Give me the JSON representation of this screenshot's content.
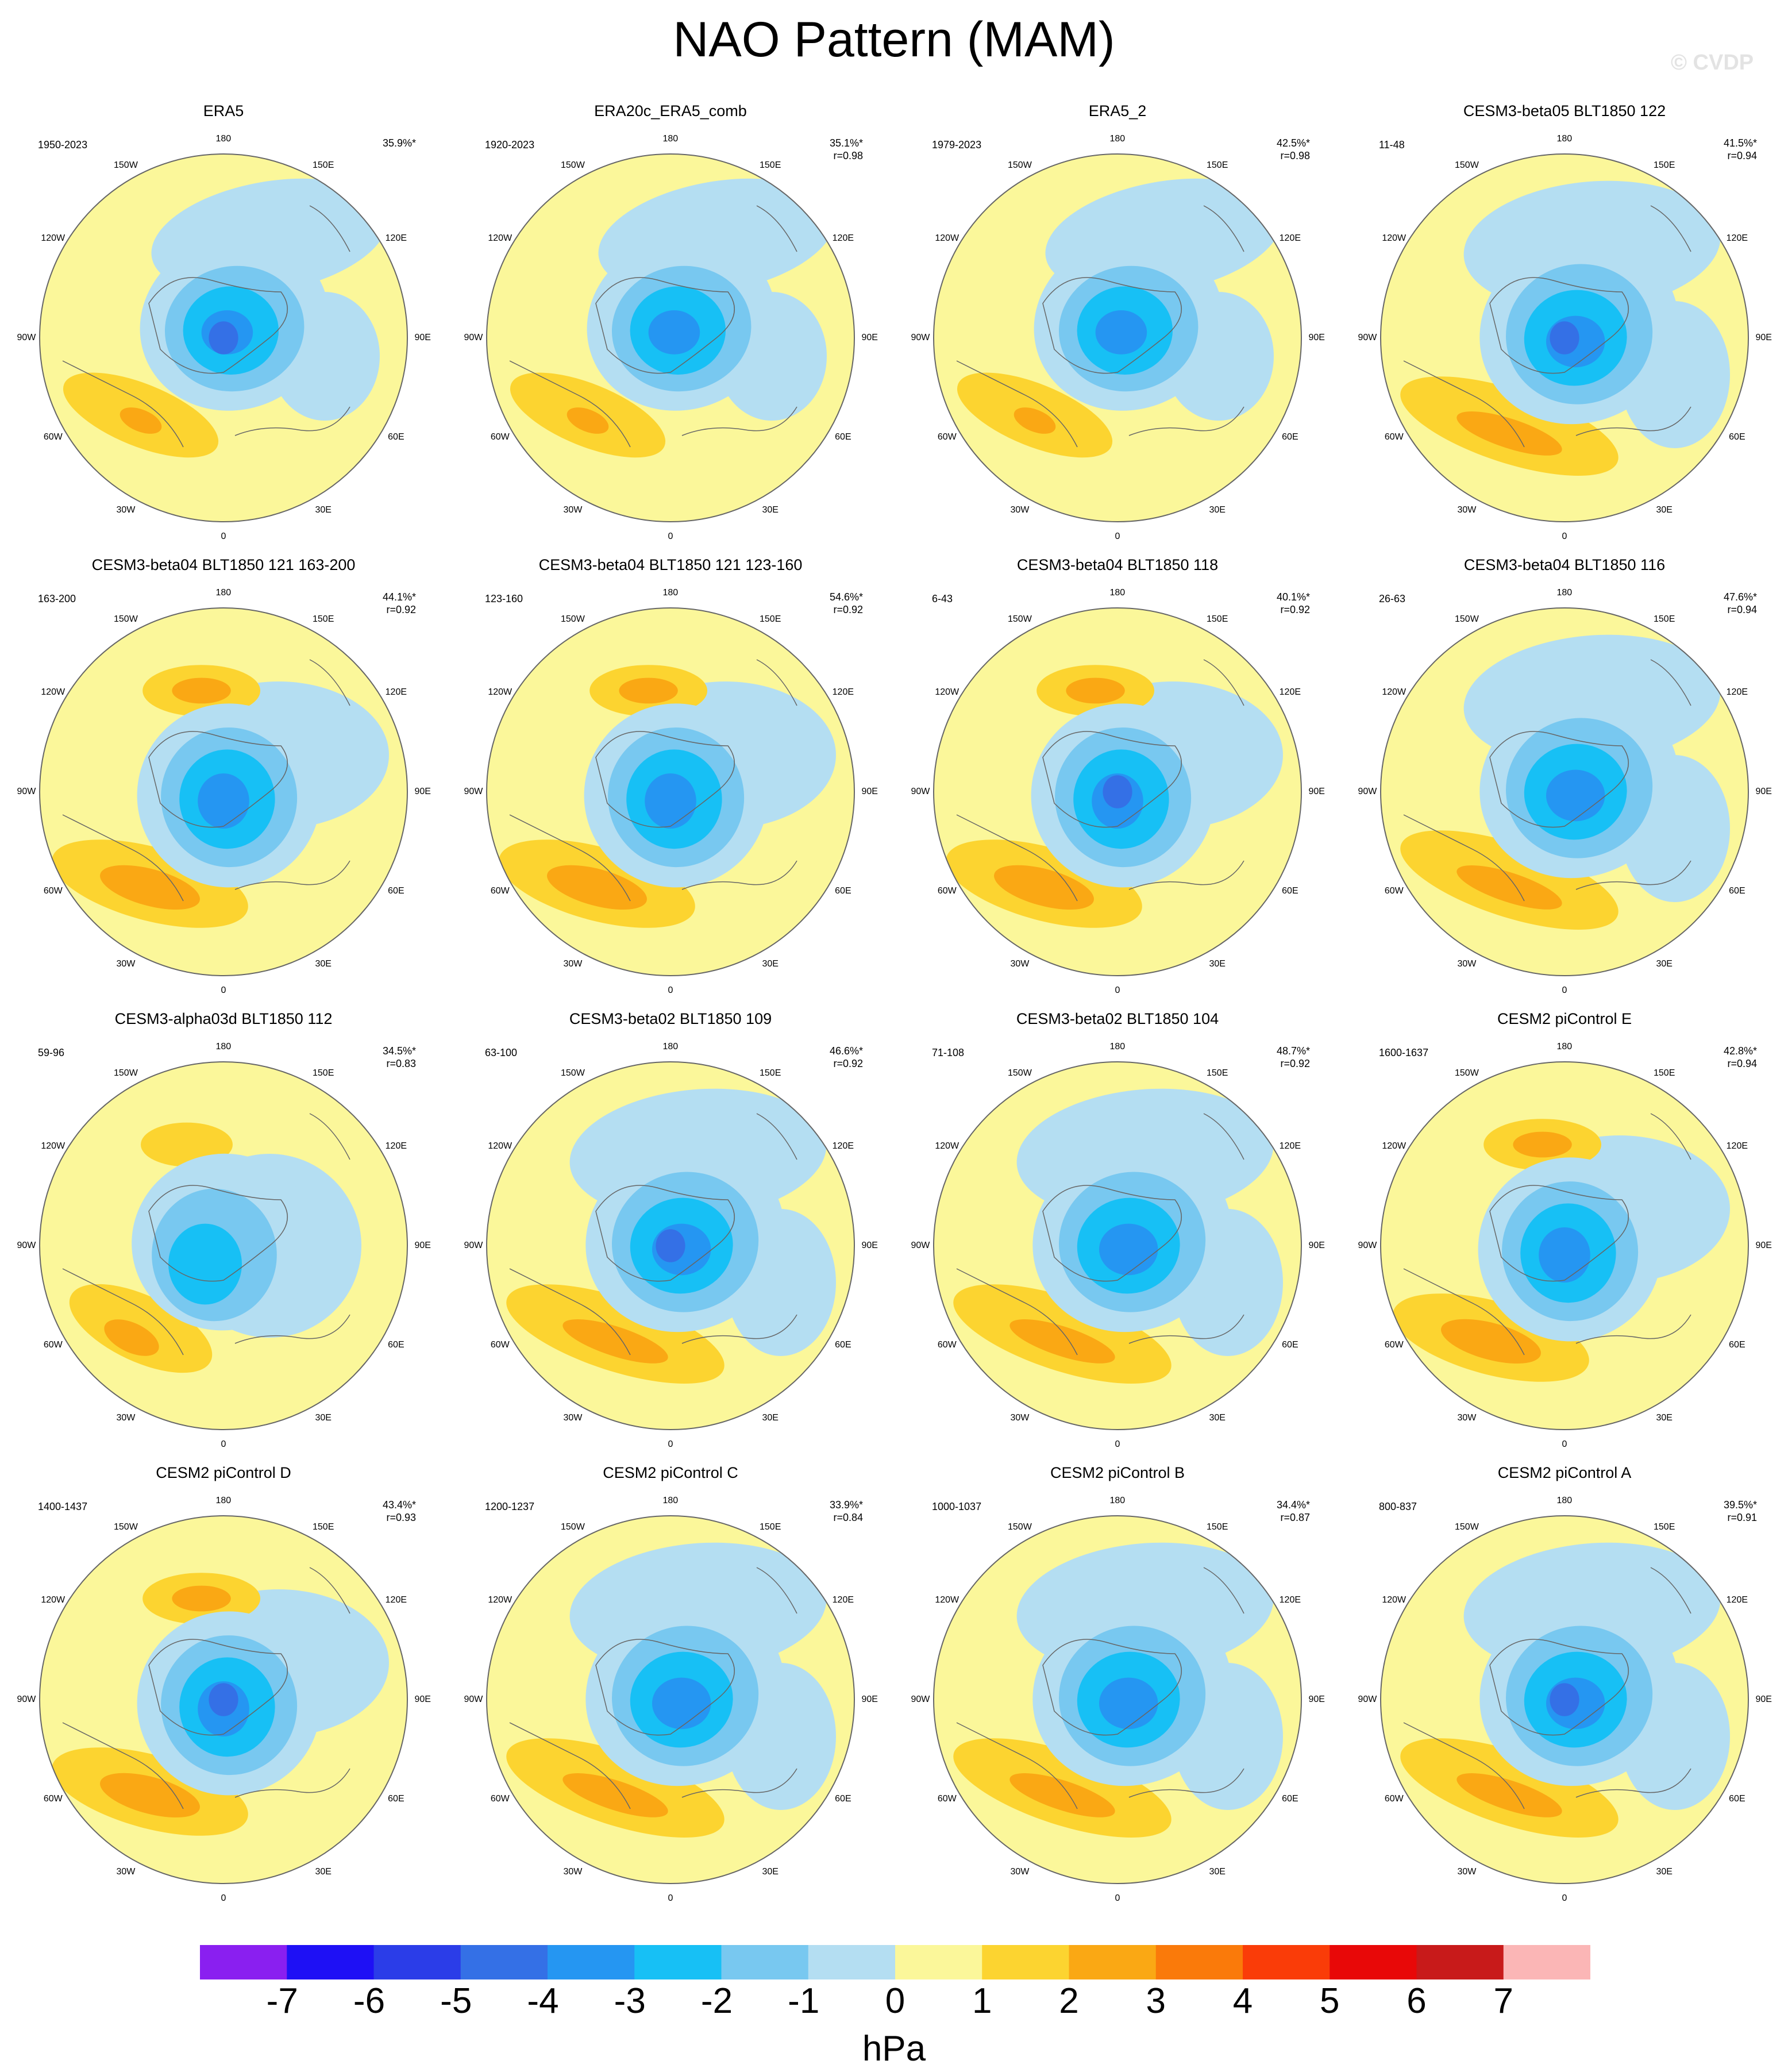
{
  "title": "NAO Pattern (MAM)",
  "watermark": "© CVDP",
  "longitude_labels": [
    "180",
    "150E",
    "120E",
    "90E",
    "60E",
    "30E",
    "0",
    "30W",
    "60W",
    "90W",
    "120W",
    "150W"
  ],
  "colors": {
    "levels": [
      "#8a1ff0",
      "#1e10f5",
      "#2b3de8",
      "#3470e6",
      "#2596f2",
      "#17c0f5",
      "#78c8f0",
      "#b4def2",
      "#fbf79a",
      "#fcd430",
      "#faa814",
      "#fa7a0a",
      "#fa3c08",
      "#e80808",
      "#c81a1a",
      "#fbb6b6"
    ]
  },
  "panels": [
    {
      "title": "ERA5",
      "period": "1950-2023",
      "pct": "35.9%*",
      "r": "",
      "style": 0
    },
    {
      "title": "ERA20c_ERA5_comb",
      "period": "1920-2023",
      "pct": "35.1%*",
      "r": "r=0.98",
      "style": 0
    },
    {
      "title": "ERA5_2",
      "period": "1979-2023",
      "pct": "42.5%*",
      "r": "r=0.98",
      "style": 0
    },
    {
      "title": "CESM3-beta05 BLT1850 122",
      "period": "11-48",
      "pct": "41.5%*",
      "r": "r=0.94",
      "style": 1
    },
    {
      "title": "CESM3-beta04 BLT1850 121 163-200",
      "period": "163-200",
      "pct": "44.1%*",
      "r": "r=0.92",
      "style": 2
    },
    {
      "title": "CESM3-beta04 BLT1850 121 123-160",
      "period": "123-160",
      "pct": "54.6%*",
      "r": "r=0.92",
      "style": 2
    },
    {
      "title": "CESM3-beta04 BLT1850 118",
      "period": "6-43",
      "pct": "40.1%*",
      "r": "r=0.92",
      "style": 2
    },
    {
      "title": "CESM3-beta04 BLT1850 116",
      "period": "26-63",
      "pct": "47.6%*",
      "r": "r=0.94",
      "style": 1
    },
    {
      "title": "CESM3-alpha03d BLT1850 112",
      "period": "59-96",
      "pct": "34.5%*",
      "r": "r=0.83",
      "style": 3
    },
    {
      "title": "CESM3-beta02 BLT1850 109",
      "period": "63-100",
      "pct": "46.6%*",
      "r": "r=0.92",
      "style": 1
    },
    {
      "title": "CESM3-beta02 BLT1850 104",
      "period": "71-108",
      "pct": "48.7%*",
      "r": "r=0.92",
      "style": 1
    },
    {
      "title": "CESM2 piControl E",
      "period": "1600-1637",
      "pct": "42.8%*",
      "r": "r=0.94",
      "style": 2
    },
    {
      "title": "CESM2 piControl D",
      "period": "1400-1437",
      "pct": "43.4%*",
      "r": "r=0.93",
      "style": 2
    },
    {
      "title": "CESM2 piControl C",
      "period": "1200-1237",
      "pct": "33.9%*",
      "r": "r=0.84",
      "style": 1
    },
    {
      "title": "CESM2 piControl B",
      "period": "1000-1037",
      "pct": "34.4%*",
      "r": "r=0.87",
      "style": 1
    },
    {
      "title": "CESM2 piControl A",
      "period": "800-837",
      "pct": "39.5%*",
      "r": "r=0.91",
      "style": 1
    }
  ],
  "colorbar": {
    "ticks": [
      "-7",
      "-6",
      "-5",
      "-4",
      "-3",
      "-2",
      "-1",
      "0",
      "1",
      "2",
      "3",
      "4",
      "5",
      "6",
      "7"
    ],
    "unit": "hPa"
  }
}
